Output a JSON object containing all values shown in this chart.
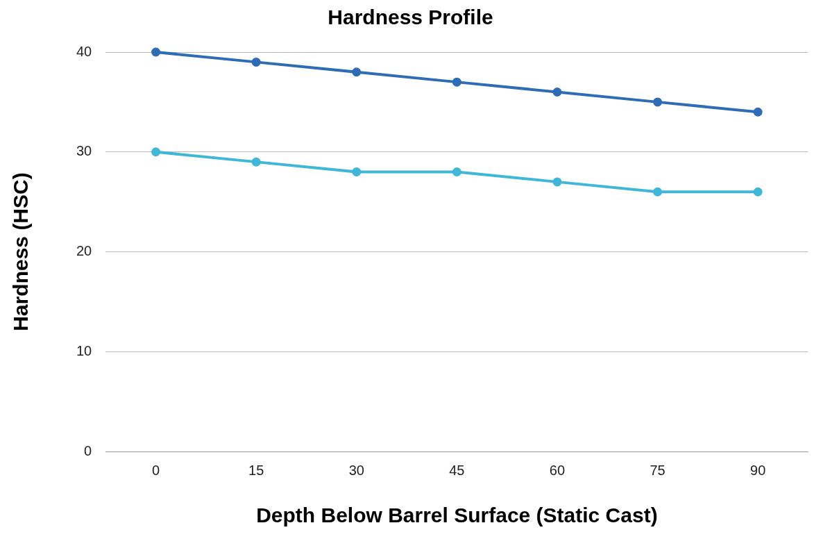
{
  "chart_data": {
    "type": "line",
    "title": "Hardness Profile",
    "xlabel": "Depth Below Barrel Surface (Static Cast)",
    "ylabel": "Hardness (HSC)",
    "categories": [
      "0",
      "15",
      "30",
      "45",
      "60",
      "75",
      "90"
    ],
    "series": [
      {
        "color": "#2e6cb5",
        "values": [
          40,
          39,
          38,
          37,
          36,
          35,
          34
        ]
      },
      {
        "color": "#3fb7d6",
        "values": [
          30,
          29,
          28,
          28,
          27,
          26,
          26
        ]
      }
    ],
    "ylim": [
      0,
      40
    ],
    "yticks": [
      0,
      10,
      20,
      30,
      40
    ],
    "grid": "y",
    "legend": false,
    "marker": "circle",
    "line_style": "solid"
  }
}
